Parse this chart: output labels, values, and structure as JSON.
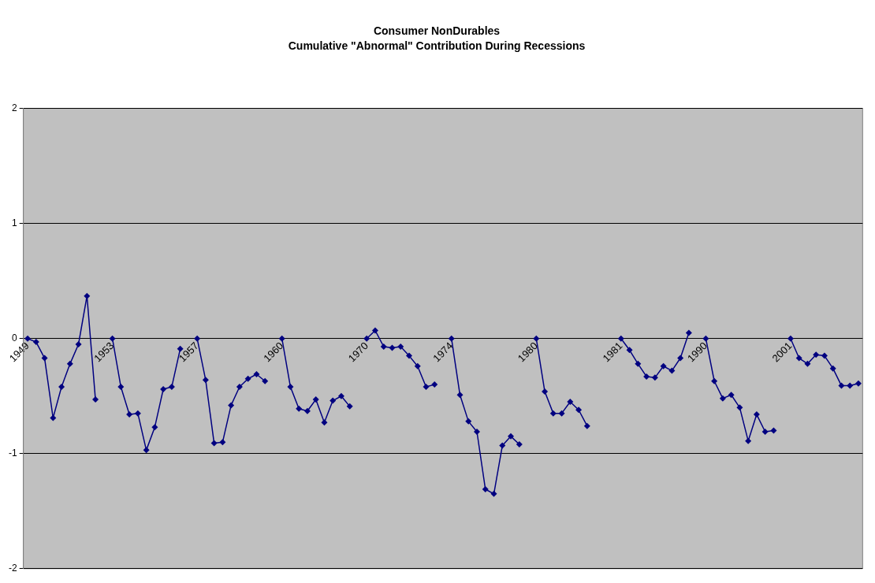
{
  "chart_data": {
    "type": "line",
    "title": "Consumer NonDurables",
    "subtitle": "Cumulative \"Abnormal\" Contribution During Recessions",
    "categories": [
      "1949",
      null,
      null,
      null,
      null,
      null,
      null,
      null,
      null,
      null,
      "1953",
      null,
      null,
      null,
      null,
      null,
      null,
      null,
      null,
      null,
      "1957",
      null,
      null,
      null,
      null,
      null,
      null,
      null,
      null,
      null,
      "1960",
      null,
      null,
      null,
      null,
      null,
      null,
      null,
      null,
      null,
      "1970",
      null,
      null,
      null,
      null,
      null,
      null,
      null,
      null,
      null,
      "1974",
      null,
      null,
      null,
      null,
      null,
      null,
      null,
      null,
      null,
      "1980",
      null,
      null,
      null,
      null,
      null,
      null,
      null,
      null,
      null,
      "1981",
      null,
      null,
      null,
      null,
      null,
      null,
      null,
      null,
      null,
      "1990",
      null,
      null,
      null,
      null,
      null,
      null,
      null,
      null,
      null,
      "2001",
      null,
      null,
      null,
      null,
      null,
      null,
      null,
      null
    ],
    "series": [
      {
        "color": "#000080",
        "values": [
          0,
          -0.03,
          -0.17,
          -0.69,
          -0.42,
          -0.22,
          -0.05,
          0.37,
          -0.53,
          null,
          0,
          -0.42,
          -0.66,
          -0.65,
          -0.97,
          -0.77,
          -0.44,
          -0.42,
          -0.09,
          null,
          0,
          -0.36,
          -0.91,
          -0.9,
          -0.58,
          -0.42,
          -0.35,
          -0.31,
          -0.37,
          null,
          0,
          -0.42,
          -0.61,
          -0.63,
          -0.53,
          -0.73,
          -0.54,
          -0.5,
          -0.59,
          null,
          0,
          0.07,
          -0.07,
          -0.08,
          -0.07,
          -0.15,
          -0.24,
          -0.42,
          -0.4,
          null,
          0,
          -0.49,
          -0.72,
          -0.81,
          -1.31,
          -1.35,
          -0.93,
          -0.85,
          -0.92,
          null,
          0,
          -0.46,
          -0.65,
          -0.65,
          -0.55,
          -0.62,
          -0.76,
          null,
          null,
          null,
          0,
          -0.1,
          -0.22,
          -0.33,
          -0.34,
          -0.24,
          -0.28,
          -0.17,
          0.05,
          null,
          0,
          -0.37,
          -0.52,
          -0.49,
          -0.6,
          -0.89,
          -0.66,
          -0.81,
          -0.8,
          null,
          0,
          -0.17,
          -0.22,
          -0.14,
          -0.15,
          -0.26,
          -0.41,
          -0.41,
          -0.39
        ]
      }
    ],
    "ylim": [
      -2,
      2
    ],
    "yticks": [
      -2,
      -1,
      0,
      1,
      2
    ],
    "grid": "y",
    "legend": false,
    "marker": "diamond",
    "line_style": "solid"
  }
}
